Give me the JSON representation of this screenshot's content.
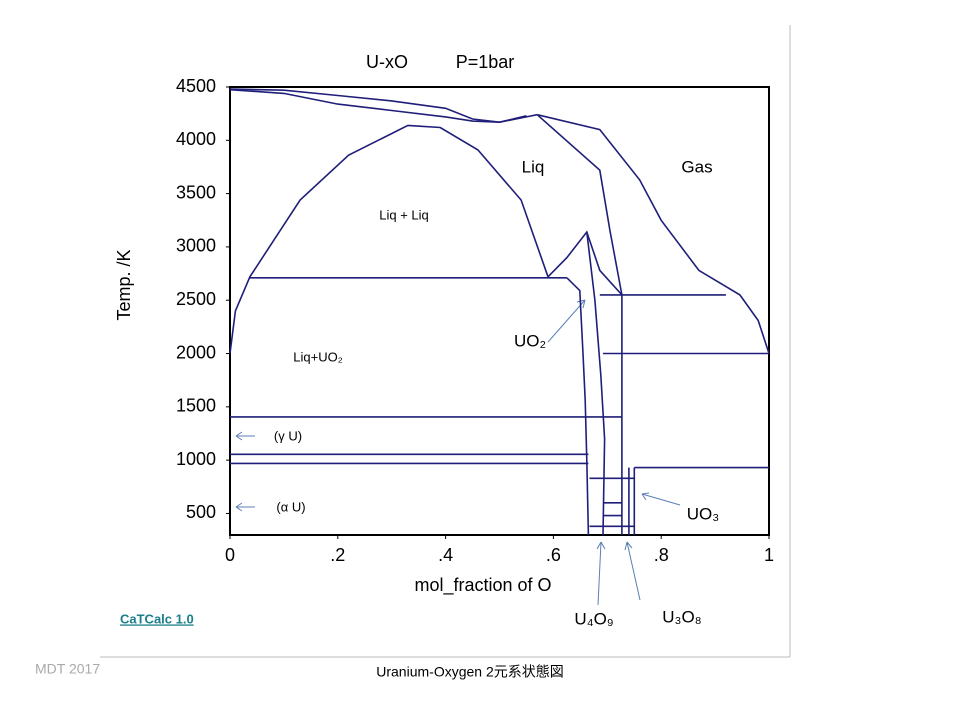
{
  "chart_data": {
    "type": "line",
    "title": "U-xO",
    "subtitle": "P=1bar",
    "x_label": "mol_fraction of O",
    "y_label": "Temp.  /K",
    "color": "#1f1f7a",
    "xlim": [
      0,
      1
    ],
    "ylim": [
      298,
      4500
    ],
    "xticks": [
      0,
      {
        "value": 0.2,
        "label": ".2"
      },
      {
        "value": 0.4,
        "label": ".4"
      },
      {
        "value": 0.6,
        "label": ".6"
      },
      {
        "value": 0.8,
        "label": ".8"
      },
      1
    ],
    "yticks": [
      500,
      1000,
      1500,
      2000,
      2500,
      3000,
      3500,
      4000,
      4500
    ],
    "series": [
      {
        "x": [
          0,
          0.1,
          0.2,
          0.3,
          0.4,
          0.45,
          0.5,
          0.55,
          0.57
        ],
        "values": [
          4480,
          4470,
          4420,
          4370,
          4300,
          4200,
          4170,
          4220,
          4240
        ]
      },
      {
        "x": [
          0,
          0.1,
          0.2,
          0.3,
          0.4,
          0.45,
          0.5,
          0.55
        ],
        "values": [
          4475,
          4440,
          4340,
          4280,
          4220,
          4180,
          4170,
          4230
        ]
      },
      {
        "x": [
          0,
          0.01,
          0.037,
          0.13,
          0.22,
          0.33,
          0.39,
          0.46,
          0.54,
          0.59
        ],
        "values": [
          2000,
          2400,
          2720,
          3440,
          3860,
          4140,
          4120,
          3910,
          3440,
          2720
        ]
      },
      {
        "x": [
          0.037,
          0.625
        ],
        "values": [
          2710,
          2710
        ]
      },
      {
        "x": [
          0.59,
          0.625,
          0.662,
          0.686,
          0.727
        ],
        "values": [
          2720,
          2900,
          3140,
          2780,
          2550
        ]
      },
      {
        "x": [
          0.625,
          0.649,
          0.655,
          0.659,
          0.662,
          0.665
        ],
        "values": [
          2710,
          2590,
          2000,
          1560,
          1000,
          298
        ]
      },
      {
        "x": [
          0.662,
          0.677,
          0.688,
          0.695,
          0.692
        ],
        "values": [
          3140,
          2500,
          1800,
          1200,
          298
        ]
      },
      {
        "x": [
          0.57,
          0.686,
          0.705,
          0.727
        ],
        "values": [
          4240,
          3720,
          3150,
          2550
        ]
      },
      {
        "x": [
          0.57,
          0.686,
          0.76,
          0.8,
          0.87,
          0.946,
          0.98,
          1
        ],
        "values": [
          4240,
          4100,
          3630,
          3250,
          2780,
          2550,
          2310,
          2000
        ]
      },
      {
        "x": [
          0.686,
          0.92
        ],
        "values": [
          2550,
          2550
        ]
      },
      {
        "x": [
          0.692,
          1
        ],
        "values": [
          2000,
          2000
        ]
      },
      {
        "x": [
          0,
          0.727
        ],
        "values": [
          1406,
          1406
        ]
      },
      {
        "x": [
          0,
          0.665
        ],
        "values": [
          1055,
          1055
        ]
      },
      {
        "x": [
          0,
          0.665
        ],
        "values": [
          970,
          970
        ]
      },
      {
        "x": [
          0.75,
          1
        ],
        "values": [
          930,
          930
        ]
      },
      {
        "x": [
          0.667,
          0.75
        ],
        "values": [
          830,
          830
        ]
      },
      {
        "x": [
          0.692,
          0.727
        ],
        "values": [
          600,
          600
        ]
      },
      {
        "x": [
          0.692,
          0.727
        ],
        "values": [
          480,
          480
        ]
      },
      {
        "x": [
          0.667,
          0.75
        ],
        "values": [
          380,
          380
        ]
      },
      {
        "x": [
          0.727,
          0.727
        ],
        "values": [
          298,
          2550
        ]
      },
      {
        "x": [
          0.75,
          0.75
        ],
        "values": [
          298,
          930
        ]
      },
      {
        "x": [
          0.74,
          0.74
        ],
        "values": [
          298,
          930
        ]
      }
    ],
    "annotations": [
      "Liq",
      "Gas",
      "Liq + Liq",
      "Liq+UO₂",
      "UO₂",
      "(γ U)",
      "(α U)",
      "UO₃",
      "U₄O₉",
      "U₃O₈"
    ]
  },
  "footer": {
    "link": "CaTCalc 1.0",
    "credit": "MDT   2017",
    "caption": "Uranium-Oxygen 2元系状態図"
  }
}
